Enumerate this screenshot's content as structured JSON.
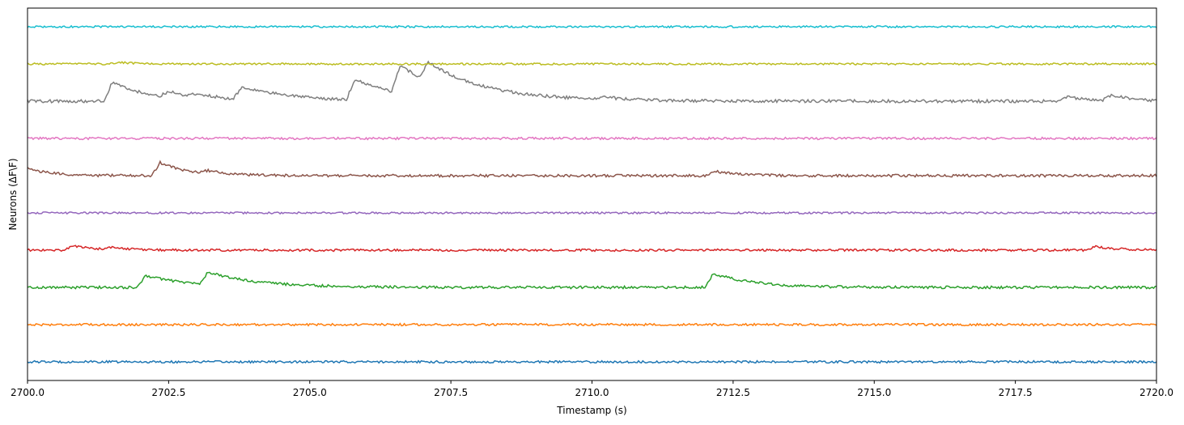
{
  "chart_data": {
    "type": "line",
    "title": "",
    "xlabel": "Timestamp (s)",
    "ylabel": "Neurons (ΔF\\F)",
    "xlim": [
      2700.0,
      2720.0
    ],
    "ylim": [
      -0.5,
      9.5
    ],
    "grid": false,
    "legend": "none",
    "x_ticks": [
      2700.0,
      2702.5,
      2705.0,
      2707.5,
      2710.0,
      2712.5,
      2715.0,
      2717.5,
      2720.0
    ],
    "x_tick_labels": [
      "2700.0",
      "2702.5",
      "2705.0",
      "2707.5",
      "2710.0",
      "2712.5",
      "2715.0",
      "2717.5",
      "2720.0"
    ],
    "series": [
      {
        "color": "#1f77b4",
        "offset": 0,
        "noise": 0.03,
        "events": []
      },
      {
        "color": "#ff7f0e",
        "offset": 1,
        "noise": 0.03,
        "events": []
      },
      {
        "color": "#2ca02c",
        "offset": 2,
        "noise": 0.035,
        "events": [
          {
            "t": 2702.1,
            "amp": 0.32,
            "tau": 0.8
          },
          {
            "t": 2703.2,
            "amp": 0.33,
            "tau": 0.9
          },
          {
            "t": 2712.15,
            "amp": 0.38,
            "tau": 0.7
          }
        ]
      },
      {
        "color": "#d62728",
        "offset": 3,
        "noise": 0.03,
        "events": [
          {
            "t": 2700.8,
            "amp": 0.12,
            "tau": 0.4
          },
          {
            "t": 2701.5,
            "amp": 0.06,
            "tau": 0.3
          },
          {
            "t": 2718.9,
            "amp": 0.1,
            "tau": 0.4
          }
        ]
      },
      {
        "color": "#9467bd",
        "offset": 4,
        "noise": 0.025,
        "events": []
      },
      {
        "color": "#8c564b",
        "offset": 5,
        "noise": 0.035,
        "events": [
          {
            "t": 2700.0,
            "amp": 0.2,
            "tau": 0.4
          },
          {
            "t": 2702.35,
            "amp": 0.35,
            "tau": 0.5
          },
          {
            "t": 2703.2,
            "amp": 0.08,
            "tau": 0.3
          },
          {
            "t": 2712.2,
            "amp": 0.12,
            "tau": 0.4
          }
        ]
      },
      {
        "color": "#e377c2",
        "offset": 6,
        "noise": 0.03,
        "events": []
      },
      {
        "color": "#7f7f7f",
        "offset": 7,
        "noise": 0.04,
        "events": [
          {
            "t": 2701.5,
            "amp": 0.5,
            "tau": 0.7
          },
          {
            "t": 2702.5,
            "amp": 0.15,
            "tau": 0.5
          },
          {
            "t": 2703.0,
            "amp": 0.1,
            "tau": 0.5
          },
          {
            "t": 2703.8,
            "amp": 0.35,
            "tau": 0.9
          },
          {
            "t": 2705.8,
            "amp": 0.55,
            "tau": 0.8
          },
          {
            "t": 2706.6,
            "amp": 0.75,
            "tau": 0.9
          },
          {
            "t": 2707.1,
            "amp": 0.5,
            "tau": 1.2
          },
          {
            "t": 2710.2,
            "amp": 0.08,
            "tau": 0.3
          },
          {
            "t": 2718.4,
            "amp": 0.12,
            "tau": 0.4
          },
          {
            "t": 2719.2,
            "amp": 0.15,
            "tau": 0.4
          }
        ]
      },
      {
        "color": "#bcbd22",
        "offset": 8,
        "noise": 0.025,
        "events": [
          {
            "t": 2701.6,
            "amp": 0.05,
            "tau": 0.3
          }
        ]
      },
      {
        "color": "#17becf",
        "offset": 9,
        "noise": 0.025,
        "events": []
      }
    ]
  }
}
